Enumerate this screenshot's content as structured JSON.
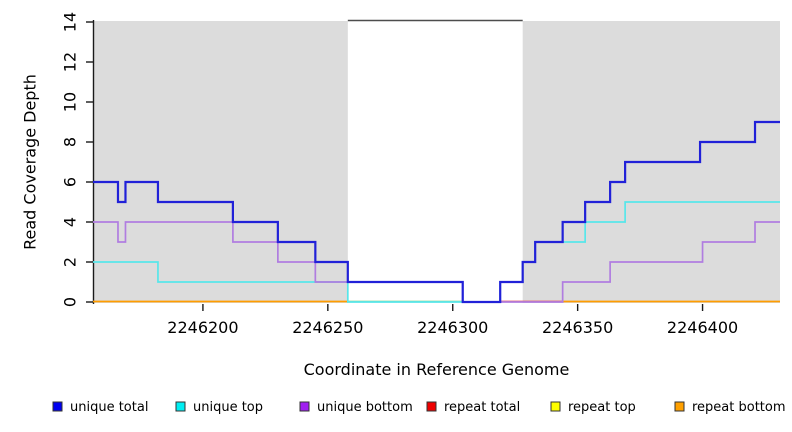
{
  "chart_data": {
    "type": "line",
    "step_mode": "post",
    "title": "",
    "xlabel": "Coordinate in Reference Genome",
    "ylabel": "Read Coverage Depth",
    "xlim": [
      2246156,
      2246431
    ],
    "ylim": [
      0,
      14
    ],
    "x_ticks": [
      2246200,
      2246250,
      2246300,
      2246350,
      2246400
    ],
    "y_ticks": [
      0,
      2,
      4,
      6,
      8,
      10,
      12,
      14
    ],
    "grid": false,
    "legend_position": "bottom",
    "shaded_regions": [
      {
        "name": "repeat-region-left",
        "x0": 2246156,
        "x1": 2246258,
        "color": "#dcdcdc"
      },
      {
        "name": "repeat-region-right",
        "x0": 2246328,
        "x1": 2246431,
        "color": "#dcdcdc"
      }
    ],
    "series": [
      {
        "name": "unique total",
        "color": "#2121d8",
        "width": 2.2,
        "z": 3,
        "draw": true,
        "points": [
          [
            2246156,
            6
          ],
          [
            2246166,
            5
          ],
          [
            2246169,
            6
          ],
          [
            2246182,
            5
          ],
          [
            2246212,
            4
          ],
          [
            2246230,
            3
          ],
          [
            2246245,
            2
          ],
          [
            2246258,
            1
          ],
          [
            2246304,
            0
          ],
          [
            2246319,
            1
          ],
          [
            2246328,
            2
          ],
          [
            2246333,
            3
          ],
          [
            2246344,
            4
          ],
          [
            2246353,
            5
          ],
          [
            2246363,
            6
          ],
          [
            2246369,
            7
          ],
          [
            2246399,
            8
          ],
          [
            2246421,
            9
          ],
          [
            2246431,
            9
          ]
        ]
      },
      {
        "name": "unique top",
        "color": "#57e6ea",
        "width": 1.7,
        "z": 1,
        "draw": true,
        "points": [
          [
            2246156,
            2
          ],
          [
            2246182,
            1
          ],
          [
            2246258,
            0
          ],
          [
            2246319,
            1
          ],
          [
            2246328,
            2
          ],
          [
            2246333,
            3
          ],
          [
            2246353,
            4
          ],
          [
            2246369,
            5
          ],
          [
            2246431,
            5
          ]
        ]
      },
      {
        "name": "unique bottom",
        "color": "#b07de0",
        "width": 1.7,
        "z": 2,
        "draw": true,
        "points": [
          [
            2246156,
            4
          ],
          [
            2246166,
            3
          ],
          [
            2246169,
            4
          ],
          [
            2246212,
            3
          ],
          [
            2246230,
            2
          ],
          [
            2246245,
            1
          ],
          [
            2246304,
            0
          ],
          [
            2246344,
            1
          ],
          [
            2246363,
            2
          ],
          [
            2246400,
            3
          ],
          [
            2246421,
            4
          ],
          [
            2246431,
            4
          ]
        ]
      },
      {
        "name": "repeat total",
        "color": "#e25866",
        "width": 1.7,
        "z": 0,
        "draw": false,
        "points": [
          [
            2246156,
            0
          ],
          [
            2246431,
            0
          ]
        ]
      },
      {
        "name": "repeat top",
        "color": "#ffff00",
        "width": 1.7,
        "z": 0,
        "draw": false,
        "points": [
          [
            2246156,
            0
          ],
          [
            2246431,
            0
          ]
        ]
      },
      {
        "name": "repeat bottom",
        "color": "#ff9d00",
        "width": 1.7,
        "z": 0,
        "draw": false,
        "points": [
          [
            2246156,
            0
          ],
          [
            2246431,
            0
          ]
        ]
      }
    ],
    "baseline_segments": [
      {
        "x0": 2246156,
        "x1": 2246258,
        "color": "#ff9d00",
        "name": "baseline-repeat-bottom-left"
      },
      {
        "x0": 2246258,
        "x1": 2246304,
        "color": "#99d899",
        "name": "baseline-blend-mid"
      },
      {
        "x0": 2246319,
        "x1": 2246344,
        "color": "#e25866",
        "name": "baseline-repeat-total"
      },
      {
        "x0": 2246344,
        "x1": 2246431,
        "color": "#ff9d00",
        "name": "baseline-repeat-bottom-right"
      }
    ],
    "legend": [
      {
        "label": "unique total",
        "color": "#0000f0"
      },
      {
        "label": "unique top",
        "color": "#00eef2"
      },
      {
        "label": "unique bottom",
        "color": "#a020f0"
      },
      {
        "label": "repeat total",
        "color": "#ee0000"
      },
      {
        "label": "repeat top",
        "color": "#ffff00"
      },
      {
        "label": "repeat bottom",
        "color": "#ffa000"
      }
    ]
  }
}
